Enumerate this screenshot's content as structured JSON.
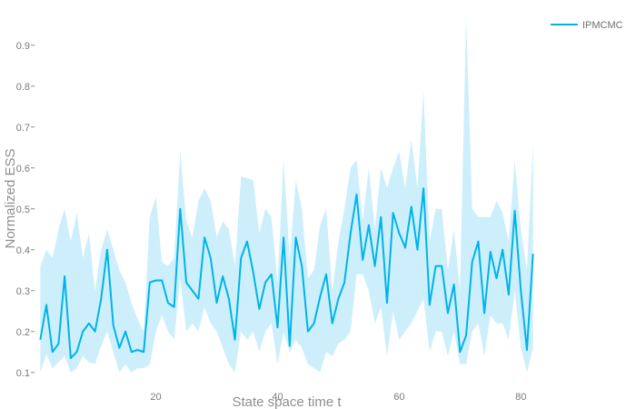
{
  "chart_data": {
    "type": "line",
    "title": "",
    "xlabel": "State space time t",
    "ylabel": "Normalized ESS",
    "x_ticks": [
      20,
      40,
      60,
      80
    ],
    "y_ticks": [
      0.1,
      0.2,
      0.3,
      0.4,
      0.5,
      0.6,
      0.7,
      0.8,
      0.9
    ],
    "y_tick_labels": [
      "0.1",
      "0.2",
      "0.3",
      "0.4",
      "0.5",
      "0.6",
      "0.7",
      "0.8",
      "0.9"
    ],
    "xlim": [
      0.5,
      82.5
    ],
    "ylim": [
      0.075,
      0.975
    ],
    "legend_position": "top-right",
    "grid": false,
    "colors": {
      "line": "#00b3ea",
      "band": "#cdeffb"
    },
    "series": [
      {
        "name": "IPMCMC",
        "x": [
          1,
          2,
          3,
          4,
          5,
          6,
          7,
          8,
          9,
          10,
          11,
          12,
          13,
          14,
          15,
          16,
          17,
          18,
          19,
          20,
          21,
          22,
          23,
          24,
          25,
          26,
          27,
          28,
          29,
          30,
          31,
          32,
          33,
          34,
          35,
          36,
          37,
          38,
          39,
          40,
          41,
          42,
          43,
          44,
          45,
          46,
          47,
          48,
          49,
          50,
          51,
          52,
          53,
          54,
          55,
          56,
          57,
          58,
          59,
          60,
          61,
          62,
          63,
          64,
          65,
          66,
          67,
          68,
          69,
          70,
          71,
          72,
          73,
          74,
          75,
          76,
          77,
          78,
          79,
          80,
          81,
          82
        ],
        "y": [
          0.18,
          0.265,
          0.15,
          0.17,
          0.335,
          0.135,
          0.15,
          0.2,
          0.22,
          0.2,
          0.28,
          0.4,
          0.215,
          0.16,
          0.2,
          0.15,
          0.155,
          0.15,
          0.32,
          0.325,
          0.325,
          0.27,
          0.26,
          0.5,
          0.32,
          0.3,
          0.28,
          0.43,
          0.38,
          0.27,
          0.335,
          0.28,
          0.18,
          0.38,
          0.42,
          0.345,
          0.255,
          0.32,
          0.34,
          0.21,
          0.43,
          0.165,
          0.43,
          0.36,
          0.2,
          0.22,
          0.285,
          0.34,
          0.22,
          0.28,
          0.32,
          0.44,
          0.535,
          0.375,
          0.46,
          0.36,
          0.48,
          0.27,
          0.49,
          0.44,
          0.405,
          0.505,
          0.4,
          0.55,
          0.265,
          0.36,
          0.36,
          0.245,
          0.315,
          0.15,
          0.19,
          0.37,
          0.42,
          0.245,
          0.395,
          0.33,
          0.4,
          0.29,
          0.495,
          0.3,
          0.155,
          0.39
        ],
        "lower": [
          0.1,
          0.145,
          0.11,
          0.125,
          0.14,
          0.1,
          0.11,
          0.14,
          0.125,
          0.12,
          0.165,
          0.2,
          0.15,
          0.1,
          0.12,
          0.1,
          0.11,
          0.11,
          0.12,
          0.2,
          0.24,
          0.2,
          0.18,
          0.33,
          0.2,
          0.22,
          0.2,
          0.26,
          0.22,
          0.2,
          0.16,
          0.12,
          0.1,
          0.2,
          0.18,
          0.2,
          0.15,
          0.2,
          0.22,
          0.12,
          0.2,
          0.15,
          0.18,
          0.16,
          0.12,
          0.11,
          0.1,
          0.15,
          0.14,
          0.17,
          0.18,
          0.2,
          0.34,
          0.34,
          0.3,
          0.22,
          0.26,
          0.14,
          0.25,
          0.18,
          0.2,
          0.22,
          0.25,
          0.28,
          0.15,
          0.2,
          0.2,
          0.14,
          0.2,
          0.12,
          0.12,
          0.2,
          0.22,
          0.14,
          0.24,
          0.22,
          0.22,
          0.18,
          0.3,
          0.16,
          0.1,
          0.16
        ],
        "upper": [
          0.36,
          0.4,
          0.38,
          0.45,
          0.5,
          0.42,
          0.49,
          0.38,
          0.44,
          0.3,
          0.4,
          0.45,
          0.4,
          0.35,
          0.32,
          0.27,
          0.23,
          0.2,
          0.48,
          0.53,
          0.37,
          0.36,
          0.38,
          0.64,
          0.47,
          0.43,
          0.52,
          0.55,
          0.52,
          0.43,
          0.47,
          0.45,
          0.36,
          0.58,
          0.575,
          0.57,
          0.44,
          0.5,
          0.48,
          0.32,
          0.62,
          0.38,
          0.57,
          0.5,
          0.33,
          0.35,
          0.46,
          0.5,
          0.3,
          0.42,
          0.5,
          0.6,
          0.62,
          0.47,
          0.6,
          0.45,
          0.6,
          0.55,
          0.6,
          0.64,
          0.55,
          0.67,
          0.55,
          0.79,
          0.42,
          0.5,
          0.5,
          0.35,
          0.45,
          0.3,
          0.97,
          0.5,
          0.48,
          0.48,
          0.48,
          0.52,
          0.49,
          0.42,
          0.62,
          0.45,
          0.35,
          0.66
        ]
      }
    ]
  }
}
